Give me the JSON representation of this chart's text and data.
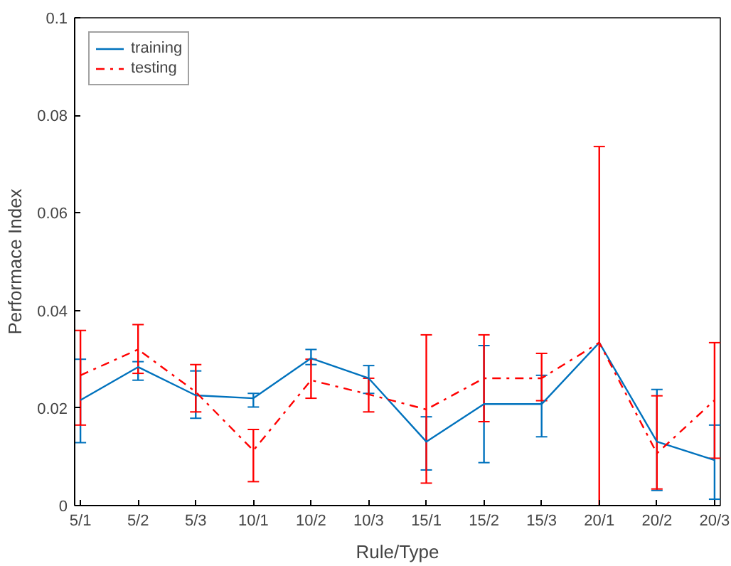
{
  "chart_data": {
    "type": "line",
    "xlabel": "Rule/Type",
    "ylabel": "Performace Index",
    "categories": [
      "5/1",
      "5/2",
      "5/3",
      "10/1",
      "10/2",
      "10/3",
      "15/1",
      "15/2",
      "15/3",
      "20/1",
      "20/2",
      "20/3"
    ],
    "ylim": [
      0,
      0.1
    ],
    "yticks": [
      0,
      0.02,
      0.04,
      0.06,
      0.08,
      0.1
    ],
    "grid": false,
    "legend": "top left",
    "marker": "none",
    "series": [
      {
        "name": "training",
        "color": "#0072bd",
        "line_style": "solid",
        "values": [
          0.0216,
          0.0284,
          0.0226,
          0.022,
          0.0302,
          0.0261,
          0.0131,
          0.0208,
          0.0208,
          0.0334,
          0.0131,
          0.0093
        ],
        "errors": [
          [
            0.0129,
            0.03
          ],
          [
            0.0257,
            0.0295
          ],
          [
            0.0179,
            0.0276
          ],
          [
            0.0202,
            0.023
          ],
          [
            0.0289,
            0.032
          ],
          [
            0.023,
            0.0287
          ],
          [
            0.0073,
            0.0182
          ],
          [
            0.0088,
            0.0328
          ],
          [
            0.0141,
            0.0267
          ],
          null,
          [
            0.0031,
            0.0238
          ],
          [
            0.0013,
            0.0165
          ]
        ]
      },
      {
        "name": "testing",
        "color": "#ff0000",
        "line_style": "dashed",
        "values": [
          0.0267,
          0.032,
          0.0233,
          0.0113,
          0.0257,
          0.0228,
          0.0197,
          0.0261,
          0.0261,
          0.0334,
          0.0107,
          0.0216
        ],
        "errors": [
          [
            0.0165,
            0.0359
          ],
          [
            0.0271,
            0.0371
          ],
          [
            0.0192,
            0.0289
          ],
          [
            0.0049,
            0.0156
          ],
          [
            0.022,
            0.03
          ],
          [
            0.0192,
            0.0261
          ],
          [
            0.0046,
            0.035
          ],
          [
            0.0172,
            0.035
          ],
          [
            0.0215,
            0.0312
          ],
          [
            0,
            0.0736
          ],
          [
            0.0034,
            0.0225
          ],
          [
            0.0097,
            0.0334
          ]
        ]
      }
    ]
  }
}
